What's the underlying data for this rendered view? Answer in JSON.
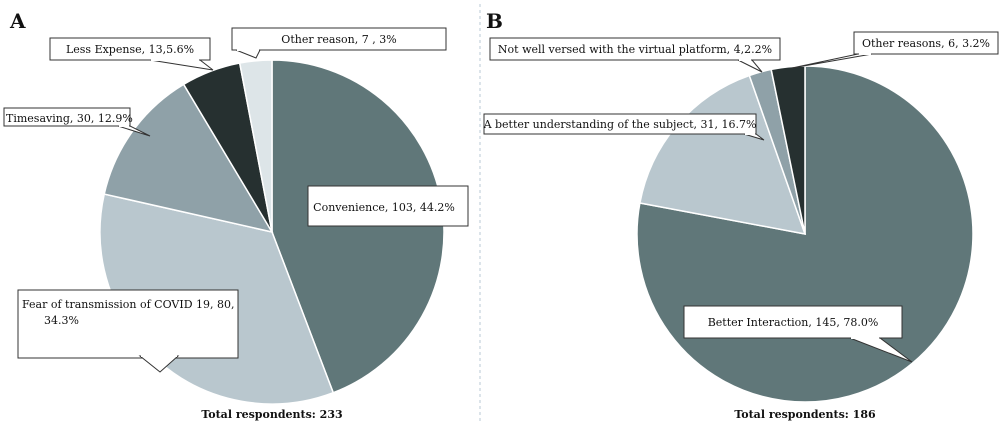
{
  "chart_data": [
    {
      "type": "pie",
      "panel_label": "A",
      "footer": "Total respondents: 233",
      "slices": [
        {
          "label": "Convenience, 103, 44.2%",
          "value": 103,
          "percent": 44.2,
          "color": "#607779"
        },
        {
          "label": "Fear of transmission of COVID 19, 80, 34.3%",
          "label_lines": [
            "Fear of transmission of COVID 19, 80,",
            "34.3%"
          ],
          "value": 80,
          "percent": 34.3,
          "color": "#b9c7ce"
        },
        {
          "label": "Timesaving, 30, 12.9%",
          "value": 30,
          "percent": 12.9,
          "color": "#8fa1a8"
        },
        {
          "label": "Less Expense, 13,5.6%",
          "value": 13,
          "percent": 5.6,
          "color": "#263030"
        },
        {
          "label": "Other reason, 7 , 3%",
          "value": 7,
          "percent": 3,
          "color": "#dde5e8"
        }
      ]
    },
    {
      "type": "pie",
      "panel_label": "B",
      "footer": "Total respondents: 186",
      "slices": [
        {
          "label": "Better Interaction, 145, 78.0%",
          "value": 145,
          "percent": 78.0,
          "color": "#607779"
        },
        {
          "label": "A better understanding of the subject, 31, 16.7%",
          "value": 31,
          "percent": 16.7,
          "color": "#b9c7ce"
        },
        {
          "label": "Not well versed with the virtual platform, 4,2.2%",
          "value": 4,
          "percent": 2.2,
          "color": "#8fa1a8"
        },
        {
          "label": "Other reasons, 6, 3.2%",
          "value": 6,
          "percent": 3.2,
          "color": "#263030"
        }
      ]
    }
  ]
}
